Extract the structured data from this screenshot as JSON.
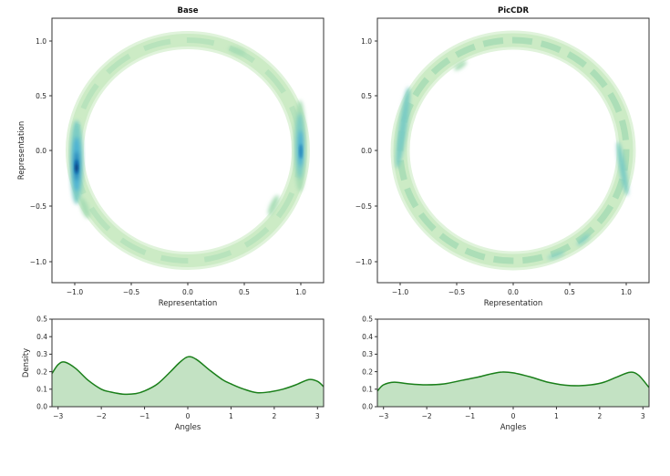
{
  "chart_data": [
    {
      "type": "heatmap",
      "subtype": "kde2d-contour",
      "title": "Base",
      "xlabel": "Representation",
      "ylabel": "Representation",
      "xlim": [
        -1.2,
        1.2
      ],
      "ylim": [
        -1.2,
        1.2
      ],
      "xticks": [
        "−1.0",
        "−0.5",
        "0.0",
        "0.5",
        "1.0"
      ],
      "yticks": [
        "−1.0",
        "−0.5",
        "0.0",
        "0.5",
        "1.0"
      ],
      "colormap": "GnBu",
      "shape": "unit circle ring",
      "hotspots": [
        {
          "angle_rad": 3.3,
          "intensity": "very high",
          "location": "(-1.0, -0.15)"
        },
        {
          "angle_rad": 0.0,
          "intensity": "high",
          "location": "(1.0, 0.0)"
        },
        {
          "angle_rad": 2.85,
          "intensity": "medium",
          "location": "(-0.96, 0.25)"
        }
      ]
    },
    {
      "type": "heatmap",
      "subtype": "kde2d-contour",
      "title": "PicCDR",
      "xlabel": "Representation",
      "ylabel": "",
      "xlim": [
        -1.2,
        1.2
      ],
      "ylim": [
        -1.2,
        1.2
      ],
      "xticks": [
        "−1.0",
        "−0.5",
        "0.0",
        "0.5",
        "1.0"
      ],
      "yticks": [
        "−1.0",
        "−0.5",
        "0.0",
        "0.5",
        "1.0"
      ],
      "colormap": "GnBu",
      "shape": "unit circle ring, near-uniform density",
      "hotspots": [
        {
          "angle_rad": 2.9,
          "intensity": "medium",
          "location": "(-0.97, 0.2)"
        },
        {
          "angle_rad": -0.3,
          "intensity": "medium",
          "location": "(0.96, -0.25)"
        }
      ]
    },
    {
      "type": "area",
      "title": "",
      "xlabel": "Angles",
      "ylabel": "Density",
      "xlim": [
        -3.1416,
        3.1416
      ],
      "ylim": [
        0.0,
        0.5
      ],
      "xticks": [
        "−3",
        "−2",
        "−1",
        "0",
        "1",
        "2",
        "3"
      ],
      "yticks": [
        "0.0",
        "0.1",
        "0.2",
        "0.3",
        "0.4",
        "0.5"
      ],
      "series": [
        {
          "name": "Base",
          "color": "#1a7f1a",
          "fill": "#c3e2c3",
          "x": [
            -3.14,
            -3.0,
            -2.85,
            -2.6,
            -2.3,
            -2.0,
            -1.8,
            -1.5,
            -1.2,
            -1.0,
            -0.7,
            -0.4,
            -0.2,
            0.0,
            0.2,
            0.5,
            0.8,
            1.0,
            1.3,
            1.6,
            1.9,
            2.2,
            2.5,
            2.8,
            3.0,
            3.14
          ],
          "values": [
            0.19,
            0.24,
            0.255,
            0.22,
            0.15,
            0.1,
            0.085,
            0.072,
            0.075,
            0.09,
            0.13,
            0.2,
            0.25,
            0.285,
            0.27,
            0.21,
            0.155,
            0.13,
            0.1,
            0.08,
            0.085,
            0.1,
            0.125,
            0.155,
            0.145,
            0.115
          ]
        },
        {
          "name": "PicCDR",
          "color": "#1a7f1a",
          "fill": "#c3e2c3",
          "x": [
            -3.14,
            -3.0,
            -2.75,
            -2.4,
            -2.0,
            -1.6,
            -1.2,
            -0.8,
            -0.5,
            -0.25,
            0.0,
            0.4,
            0.8,
            1.2,
            1.5,
            1.8,
            2.1,
            2.4,
            2.7,
            2.9,
            3.14
          ],
          "values": [
            0.09,
            0.125,
            0.14,
            0.13,
            0.125,
            0.13,
            0.15,
            0.17,
            0.188,
            0.198,
            0.193,
            0.17,
            0.14,
            0.123,
            0.12,
            0.125,
            0.14,
            0.17,
            0.197,
            0.18,
            0.11
          ]
        }
      ]
    }
  ],
  "panels": {
    "top_left": {
      "title": "Base",
      "xlabel": "Representation",
      "ylabel": "Representation"
    },
    "top_right": {
      "title": "PicCDR",
      "xlabel": "Representation"
    },
    "bottom_left": {
      "xlabel": "Angles",
      "ylabel": "Density"
    },
    "bottom_right": {
      "xlabel": "Angles"
    }
  },
  "ticks": {
    "rep": [
      "−1.0",
      "−0.5",
      "0.0",
      "0.5",
      "1.0"
    ],
    "angle": [
      "−3",
      "−2",
      "−1",
      "0",
      "1",
      "2",
      "3"
    ],
    "density": [
      "0.0",
      "0.1",
      "0.2",
      "0.3",
      "0.4",
      "0.5"
    ]
  },
  "colors": {
    "gnbu": [
      "#f0f9e8",
      "#e0f3db",
      "#ccebc5",
      "#a8ddb5",
      "#7bccc4",
      "#4eb3d3",
      "#2b8cbe",
      "#0868ac",
      "#084081"
    ],
    "kde_line": "#1a7f1a",
    "kde_fill": "#c3e2c3",
    "frame": "#333333"
  }
}
